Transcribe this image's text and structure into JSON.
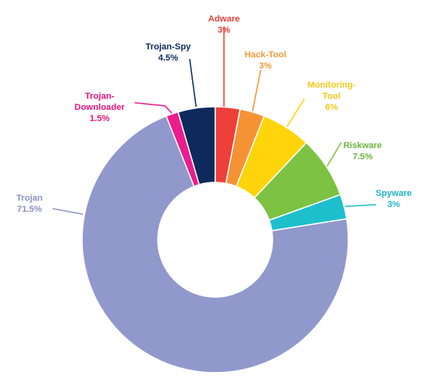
{
  "chart_data": {
    "type": "pie",
    "donut": true,
    "legend": "none",
    "slices": [
      {
        "label": "Adware",
        "label_lines": [
          "Adware"
        ],
        "value": 3,
        "value_text": "3%",
        "color": "#EE3F3A",
        "label_color": "#E8413A"
      },
      {
        "label": "Hack-Tool",
        "label_lines": [
          "Hack-Tool"
        ],
        "value": 3,
        "value_text": "3%",
        "color": "#F59234",
        "label_color": "#F39A3A"
      },
      {
        "label": "Monitoring-Tool",
        "label_lines": [
          "Monitoring-",
          "Tool"
        ],
        "value": 6,
        "value_text": "6%",
        "color": "#FFD40A",
        "label_color": "#F2C81C"
      },
      {
        "label": "Riskware",
        "label_lines": [
          "Riskware"
        ],
        "value": 7.5,
        "value_text": "7.5%",
        "color": "#7DC242",
        "label_color": "#6DB33F"
      },
      {
        "label": "Spyware",
        "label_lines": [
          "Spyware"
        ],
        "value": 3,
        "value_text": "3%",
        "color": "#1EBFCC",
        "label_color": "#1FB3C6"
      },
      {
        "label": "Trojan",
        "label_lines": [
          "Trojan"
        ],
        "value": 71.5,
        "value_text": "71.5%",
        "color": "#9198CB",
        "label_color": "#8A90C4"
      },
      {
        "label": "Trojan-Downloader",
        "label_lines": [
          "Trojan-",
          "Downloader"
        ],
        "value": 1.5,
        "value_text": "1.5%",
        "color": "#EC1C8C",
        "label_color": "#E5147E"
      },
      {
        "label": "Trojan-Spy",
        "label_lines": [
          "Trojan-Spy"
        ],
        "value": 4.5,
        "value_text": "4.5%",
        "color": "#0E2A5C",
        "label_color": "#0E2A5C"
      }
    ]
  }
}
